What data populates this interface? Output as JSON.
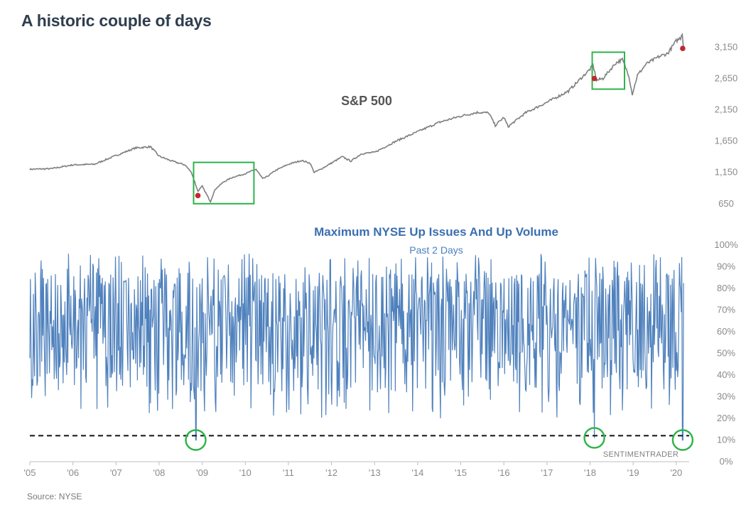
{
  "title": "A historic couple of days",
  "source": "Source: NYSE",
  "watermark": "SENTIMENTRADER",
  "colors": {
    "sp_line": "#7f7f7f",
    "breadth_line": "#4f81bd",
    "highlight": "#2db34a",
    "marker": "#c0282d",
    "threshold": "#111111",
    "axis": "#bfbfbf"
  },
  "chart_data": [
    {
      "type": "line",
      "title": "S&P 500",
      "ylim": [
        500,
        3450
      ],
      "yticks": [
        650,
        1150,
        1650,
        2150,
        2650,
        3150
      ],
      "ytick_labels": [
        "650",
        "1,150",
        "1,650",
        "2,150",
        "2,650",
        "3,150"
      ],
      "x": [
        2005.0,
        2005.5,
        2006.0,
        2006.5,
        2007.0,
        2007.45,
        2007.8,
        2008.0,
        2008.3,
        2008.6,
        2008.75,
        2008.9,
        2009.0,
        2009.1,
        2009.19,
        2009.3,
        2009.5,
        2009.7,
        2010.0,
        2010.25,
        2010.4,
        2010.5,
        2010.7,
        2011.0,
        2011.3,
        2011.5,
        2011.6,
        2011.75,
        2012.0,
        2012.25,
        2012.45,
        2012.7,
        2013.0,
        2013.5,
        2014.0,
        2014.5,
        2015.0,
        2015.4,
        2015.65,
        2015.8,
        2016.0,
        2016.1,
        2016.5,
        2017.0,
        2017.5,
        2018.0,
        2018.07,
        2018.15,
        2018.3,
        2018.6,
        2018.75,
        2018.9,
        2018.98,
        2019.1,
        2019.3,
        2019.6,
        2019.8,
        2020.0,
        2020.1,
        2020.14,
        2020.17
      ],
      "values": [
        1200,
        1210,
        1270,
        1280,
        1420,
        1540,
        1560,
        1410,
        1330,
        1270,
        1150,
        850,
        930,
        800,
        683,
        880,
        1000,
        1070,
        1130,
        1200,
        1050,
        1080,
        1180,
        1280,
        1340,
        1300,
        1150,
        1200,
        1300,
        1400,
        1330,
        1450,
        1470,
        1650,
        1800,
        1950,
        2050,
        2110,
        2100,
        1900,
        2030,
        1880,
        2100,
        2270,
        2450,
        2800,
        2860,
        2620,
        2650,
        2900,
        2950,
        2700,
        2400,
        2700,
        2880,
        3000,
        3050,
        3250,
        3300,
        3380,
        3120
      ],
      "markers": [
        {
          "x": 2008.9,
          "y": 780
        },
        {
          "x": 2018.1,
          "y": 2650
        },
        {
          "x": 2020.15,
          "y": 3130
        }
      ],
      "highlight_boxes": [
        {
          "x0": 2008.8,
          "x1": 2010.2,
          "y0": 650,
          "y1": 1310
        },
        {
          "x0": 2018.05,
          "x1": 2018.8,
          "y0": 2480,
          "y1": 3070
        }
      ]
    },
    {
      "type": "line",
      "title": "Maximum NYSE Up Issues And Up Volume",
      "subtitle": "Past 2 Days",
      "ylim": [
        0,
        100
      ],
      "yticks": [
        0,
        10,
        20,
        30,
        40,
        50,
        60,
        70,
        80,
        90,
        100
      ],
      "ytick_labels": [
        "0%",
        "10%",
        "20%",
        "30%",
        "40%",
        "50%",
        "60%",
        "70%",
        "80%",
        "90%",
        "100%"
      ],
      "x_range": [
        2005.0,
        2020.17
      ],
      "typical_range_pct": [
        20,
        96
      ],
      "threshold": 12,
      "spikes": [
        {
          "x": 2008.85,
          "y": 10
        },
        {
          "x": 2018.1,
          "y": 11
        },
        {
          "x": 2020.15,
          "y": 10
        }
      ],
      "highlight_circles": [
        {
          "x": 2008.85,
          "y": 10
        },
        {
          "x": 2018.1,
          "y": 11
        },
        {
          "x": 2020.15,
          "y": 10
        }
      ]
    }
  ],
  "x_axis": {
    "xlim": [
      2005.0,
      2020.3
    ],
    "ticks": [
      2005,
      2006,
      2007,
      2008,
      2009,
      2010,
      2011,
      2012,
      2013,
      2014,
      2015,
      2016,
      2017,
      2018,
      2019,
      2020
    ],
    "tick_labels": [
      "'05",
      "'06",
      "'07",
      "'08",
      "'09",
      "'10",
      "'11",
      "'12",
      "'13",
      "'14",
      "'15",
      "'16",
      "'17",
      "'18",
      "'19",
      "'20"
    ]
  }
}
